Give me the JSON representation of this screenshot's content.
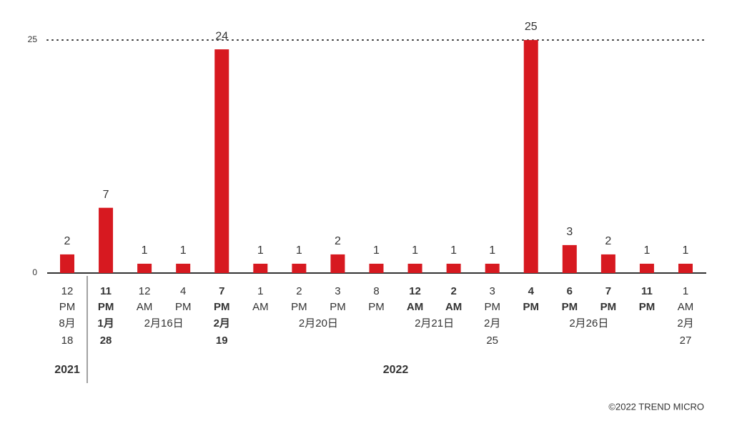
{
  "chart_data": {
    "type": "bar",
    "categories": [
      [
        "12",
        "PM",
        "8月",
        "18"
      ],
      [
        "11",
        "PM",
        "1月",
        "28"
      ],
      [
        "12",
        "AM"
      ],
      [
        "4",
        "PM"
      ],
      [
        "7",
        "PM",
        "2月",
        "19"
      ],
      [
        "1",
        "AM"
      ],
      [
        "2",
        "PM"
      ],
      [
        "3",
        "PM"
      ],
      [
        "8",
        "PM"
      ],
      [
        "12",
        "AM"
      ],
      [
        "2",
        "AM"
      ],
      [
        "3",
        "PM",
        "2月",
        "25"
      ],
      [
        "4",
        "PM"
      ],
      [
        "6",
        "PM"
      ],
      [
        "7",
        "PM"
      ],
      [
        "11",
        "PM"
      ],
      [
        "1",
        "AM",
        "2月",
        "27"
      ]
    ],
    "bold": [
      false,
      true,
      false,
      false,
      true,
      false,
      false,
      false,
      false,
      true,
      true,
      false,
      true,
      true,
      true,
      true,
      false
    ],
    "values": [
      2,
      7,
      1,
      1,
      24,
      1,
      1,
      2,
      1,
      1,
      1,
      1,
      25,
      3,
      2,
      1,
      1
    ],
    "color": "#d71920",
    "ylim": [
      0,
      25
    ],
    "yticks": [
      0,
      25
    ],
    "grid": true,
    "date_groups": [
      {
        "label": "2月16日",
        "from": 2,
        "to": 3
      },
      {
        "label": "2月20日",
        "from": 5,
        "to": 8
      },
      {
        "label": "2月21日",
        "from": 9,
        "to": 10
      },
      {
        "label": "2月26日",
        "from": 13,
        "to": 14
      }
    ],
    "year_groups": [
      {
        "label": "2021",
        "from": 0,
        "to": 0
      },
      {
        "label": "2022",
        "from": 1,
        "to": 16
      }
    ]
  },
  "footer": "©2022 TREND MICRO"
}
